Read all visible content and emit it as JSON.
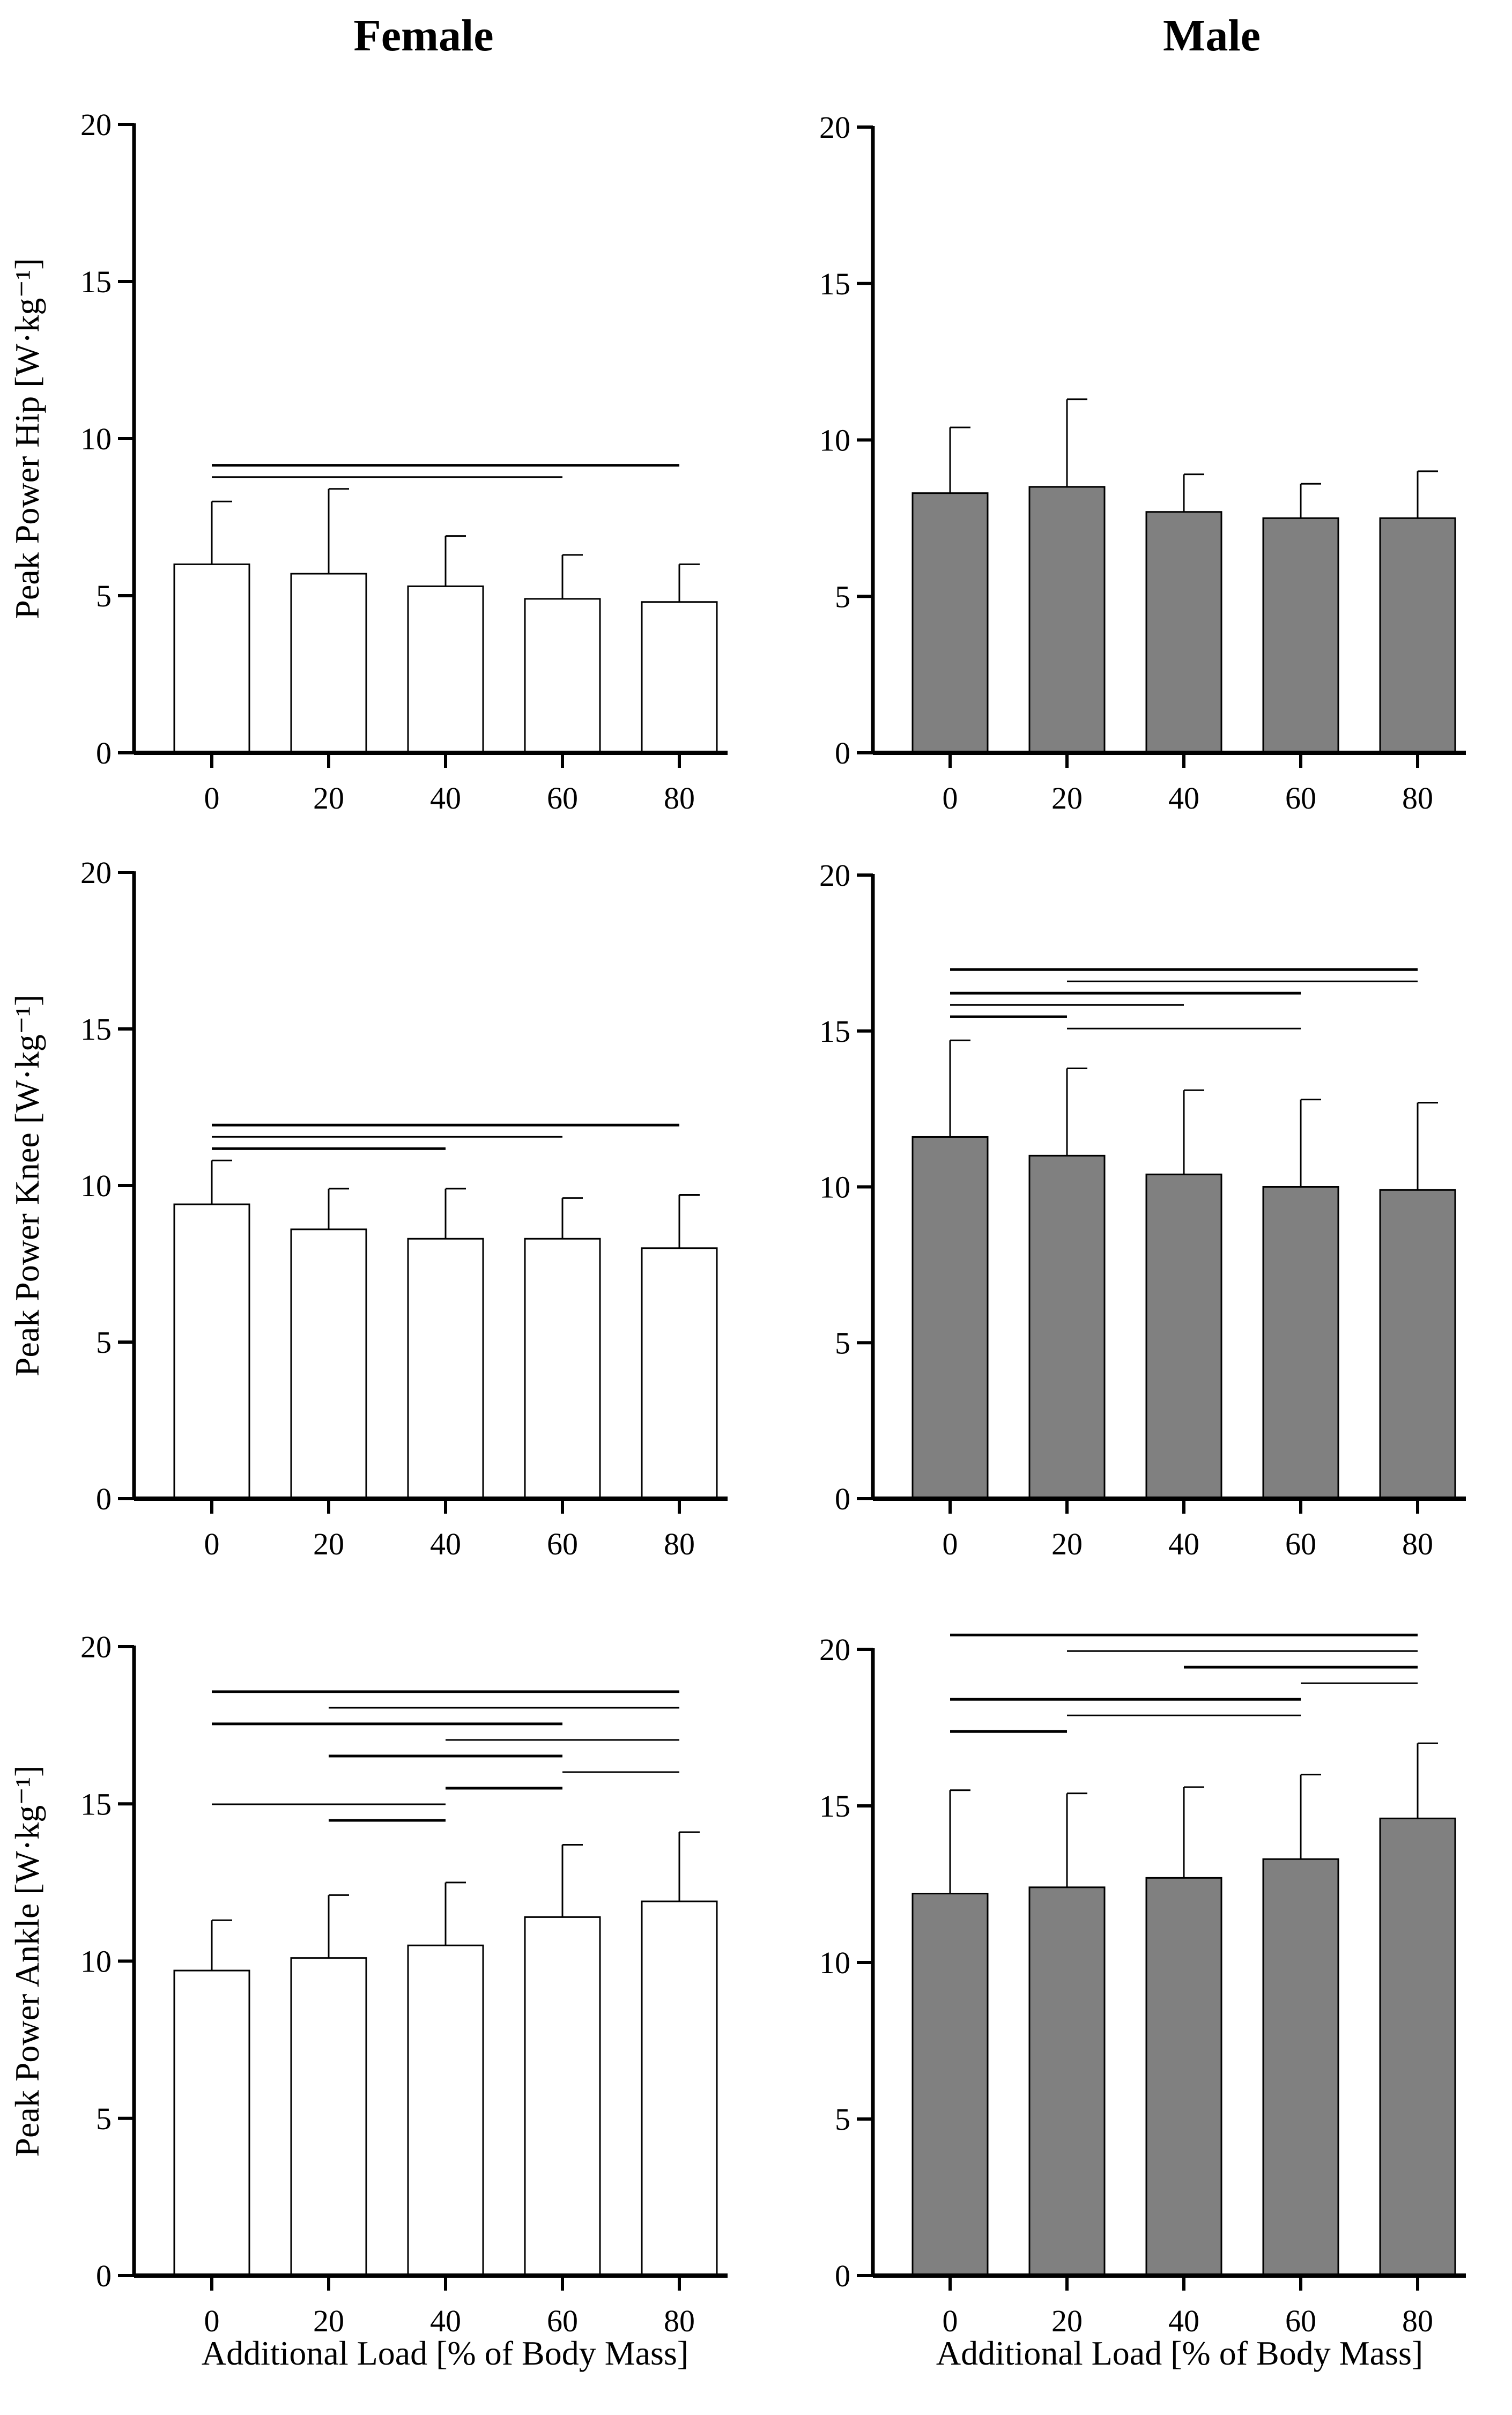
{
  "titles": {
    "female": "Female",
    "male": "Male"
  },
  "xlabel": "Additional Load [% of Body Mass]",
  "colors": {
    "female_bar": "#ffffff",
    "male_bar": "#808080",
    "stroke": "#000000"
  },
  "chart_data": [
    {
      "type": "bar",
      "panel": "female-hip",
      "group": "Female",
      "ylabel": "Peak Power Hip [W·kg⁻¹]",
      "categories": [
        "0",
        "20",
        "40",
        "60",
        "80"
      ],
      "values": [
        6.0,
        5.7,
        5.3,
        4.9,
        4.8
      ],
      "errors": [
        2.0,
        2.7,
        1.6,
        1.4,
        1.2
      ],
      "ylim": [
        0,
        20
      ],
      "yticks": [
        "0",
        "5",
        "10",
        "15",
        "20"
      ],
      "sig_lines": [
        [
          0,
          4
        ],
        [
          0,
          3
        ]
      ]
    },
    {
      "type": "bar",
      "panel": "male-hip",
      "group": "Male",
      "ylabel": "",
      "categories": [
        "0",
        "20",
        "40",
        "60",
        "80"
      ],
      "values": [
        8.3,
        8.5,
        7.7,
        7.5,
        7.5
      ],
      "errors": [
        2.1,
        2.8,
        1.2,
        1.1,
        1.5
      ],
      "ylim": [
        0,
        20
      ],
      "yticks": [
        "0",
        "5",
        "10",
        "15",
        "20"
      ],
      "sig_lines": []
    },
    {
      "type": "bar",
      "panel": "female-knee",
      "group": "Female",
      "ylabel": "Peak Power Knee [W·kg⁻¹]",
      "categories": [
        "0",
        "20",
        "40",
        "60",
        "80"
      ],
      "values": [
        9.4,
        8.6,
        8.3,
        8.3,
        8.0
      ],
      "errors": [
        1.4,
        1.3,
        1.6,
        1.3,
        1.7
      ],
      "ylim": [
        0,
        20
      ],
      "yticks": [
        "0",
        "5",
        "10",
        "15",
        "20"
      ],
      "sig_lines": [
        [
          0,
          4
        ],
        [
          0,
          3
        ],
        [
          0,
          2
        ]
      ]
    },
    {
      "type": "bar",
      "panel": "male-knee",
      "group": "Male",
      "ylabel": "",
      "categories": [
        "0",
        "20",
        "40",
        "60",
        "80"
      ],
      "values": [
        11.6,
        11.0,
        10.4,
        10.0,
        9.9
      ],
      "errors": [
        3.1,
        2.8,
        2.7,
        2.8,
        2.8
      ],
      "ylim": [
        0,
        20
      ],
      "yticks": [
        "0",
        "5",
        "10",
        "15",
        "20"
      ],
      "sig_lines": [
        [
          0,
          4
        ],
        [
          1,
          4
        ],
        [
          0,
          3
        ],
        [
          0,
          2
        ],
        [
          0,
          1
        ],
        [
          1,
          3
        ]
      ]
    },
    {
      "type": "bar",
      "panel": "female-ankle",
      "group": "Female",
      "ylabel": "Peak Power Ankle [W·kg⁻¹]",
      "categories": [
        "0",
        "20",
        "40",
        "60",
        "80"
      ],
      "values": [
        9.7,
        10.1,
        10.5,
        11.4,
        11.9
      ],
      "errors": [
        1.6,
        2.0,
        2.0,
        2.3,
        2.2
      ],
      "ylim": [
        0,
        20
      ],
      "yticks": [
        "0",
        "5",
        "10",
        "15",
        "20"
      ],
      "sig_lines": [
        [
          0,
          4
        ],
        [
          1,
          4
        ],
        [
          0,
          3
        ],
        [
          2,
          4
        ],
        [
          1,
          3
        ],
        [
          3,
          4
        ],
        [
          2,
          3
        ],
        [
          0,
          2
        ],
        [
          1,
          2
        ]
      ]
    },
    {
      "type": "bar",
      "panel": "male-ankle",
      "group": "Male",
      "ylabel": "",
      "categories": [
        "0",
        "20",
        "40",
        "60",
        "80"
      ],
      "values": [
        12.2,
        12.4,
        12.7,
        13.3,
        14.6
      ],
      "errors": [
        3.3,
        3.0,
        2.9,
        2.7,
        2.4
      ],
      "ylim": [
        0,
        20
      ],
      "yticks": [
        "0",
        "5",
        "10",
        "15",
        "20"
      ],
      "sig_lines": [
        [
          0,
          4
        ],
        [
          1,
          4
        ],
        [
          2,
          4
        ],
        [
          3,
          4
        ],
        [
          0,
          3
        ],
        [
          1,
          3
        ],
        [
          0,
          1
        ]
      ]
    }
  ]
}
